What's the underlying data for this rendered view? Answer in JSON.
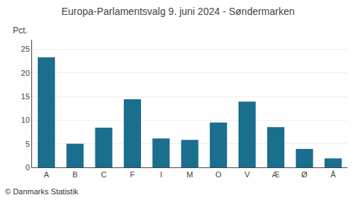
{
  "chart_data": {
    "type": "bar",
    "title": "Europa-Parlamentsvalg 9. juni 2024 - Søndermarken",
    "ylabel": "Pct.",
    "annotations": [
      "© Danmarks Statistik"
    ],
    "categories": [
      "A",
      "B",
      "C",
      "F",
      "I",
      "M",
      "O",
      "V",
      "Æ",
      "Ø",
      "Å"
    ],
    "values": [
      23.3,
      5.0,
      8.4,
      14.4,
      6.1,
      5.8,
      9.5,
      13.9,
      8.5,
      3.9,
      1.9
    ],
    "color": "#1a6e8e",
    "ylim": [
      0,
      27
    ],
    "yticks": [
      0,
      5,
      10,
      15,
      20,
      25
    ],
    "grid": true
  }
}
